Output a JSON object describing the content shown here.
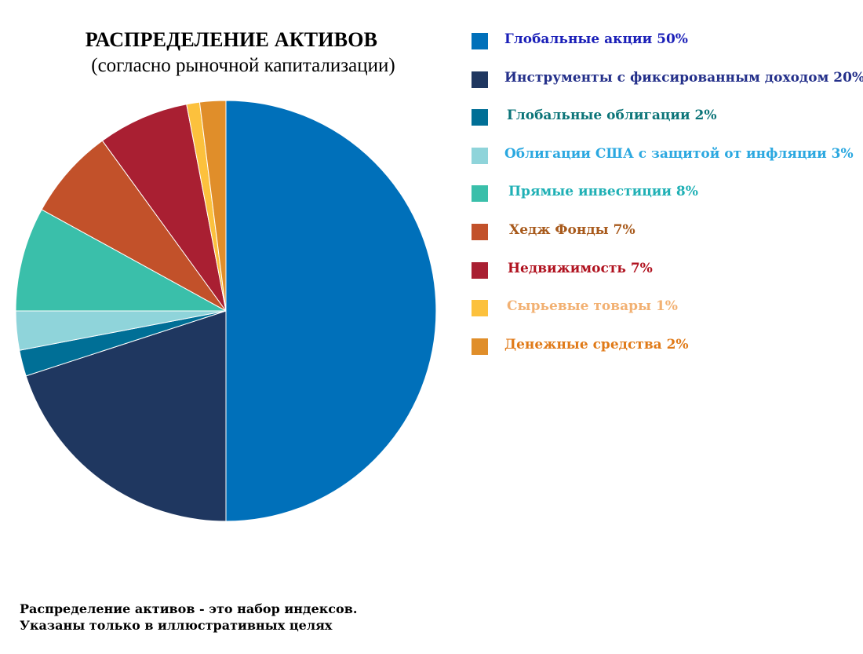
{
  "chart_data": {
    "type": "pie",
    "title": "РАСПРЕДЕЛЕНИЕ АКТИВОВ",
    "subtitle": "(согласно рыночной капитализации)",
    "legend_position": "right",
    "slices": [
      {
        "name": "Глобальные акции",
        "value": 50,
        "label": "Глобальные акции 50%",
        "color": "#0070BA",
        "text_color": "#1A1FB8"
      },
      {
        "name": "Инструменты с фиксированным доходом",
        "value": 20,
        "label": "Инструменты с фиксированным доходом 20%",
        "color": "#1F3760",
        "text_color": "#24308A"
      },
      {
        "name": "Глобальные облигации",
        "value": 2,
        "label": "Глобальные облигации 2%",
        "color": "#006F96",
        "text_color": "#0B7478"
      },
      {
        "name": "Облигации США с защитой от инфляции",
        "value": 3,
        "label": "Облигации США с защитой от инфляции 3%",
        "color": "#8FD4DA",
        "text_color": "#2BA8E0"
      },
      {
        "name": "Прямые инвестиции",
        "value": 8,
        "label": "Прямые инвестиции 8%",
        "color": "#3ABFAA",
        "text_color": "#1FB0B5"
      },
      {
        "name": "Хедж Фонды",
        "value": 7,
        "label": "Хедж Фонды 7%",
        "color": "#C2512A",
        "text_color": "#A85A1C"
      },
      {
        "name": "Недвижимость",
        "value": 7,
        "label": "Недвижимость 7%",
        "color": "#A91F32",
        "text_color": "#B0121F"
      },
      {
        "name": "Сырьевые товары",
        "value": 1,
        "label": "Сырьевые товары 1%",
        "color": "#FCC13D",
        "text_color": "#F2B173"
      },
      {
        "name": "Денежные средства",
        "value": 2,
        "label": "Денежные средства 2%",
        "color": "#E08E2A",
        "text_color": "#E07A18"
      }
    ]
  },
  "footnote": {
    "line1": "Распределение активов - это набор индексов.",
    "line2": "Указаны только в иллюстративных целях"
  }
}
